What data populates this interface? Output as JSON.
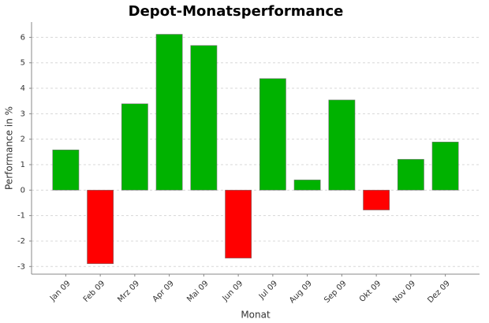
{
  "chart_data": {
    "type": "bar",
    "title": "Depot-Monatsperformance",
    "x_label": "Monat",
    "y_label": "Performance in %",
    "categories": [
      "Jan 09",
      "Feb 09",
      "Mrz 09",
      "Apr 09",
      "Mai 09",
      "Jun 09",
      "Jul 09",
      "Aug 09",
      "Sep 09",
      "Okt 09",
      "Nov 09",
      "Dez 09"
    ],
    "values": [
      1.58,
      -2.89,
      3.39,
      6.12,
      5.68,
      -2.67,
      4.38,
      0.4,
      3.54,
      -0.78,
      1.21,
      1.89
    ],
    "positive_color": "#00b200",
    "negative_color": "#ff0000",
    "ylim": [
      -3.3,
      6.6
    ],
    "yticks": [
      -3,
      -2,
      -1,
      0,
      1,
      2,
      3,
      4,
      5,
      6
    ],
    "grid": true
  }
}
